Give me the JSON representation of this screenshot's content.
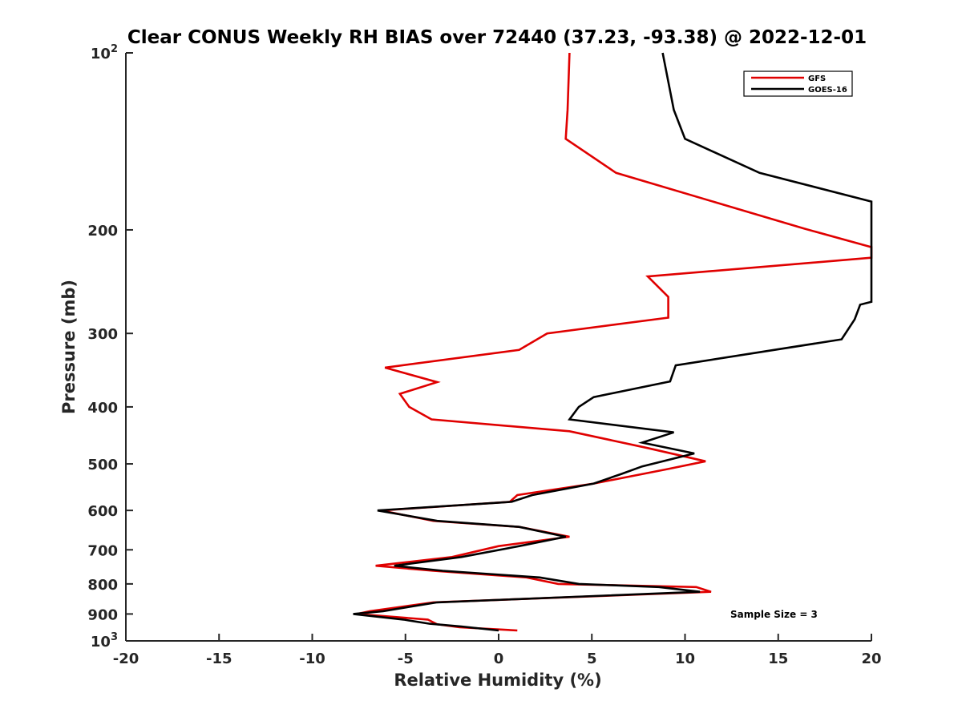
{
  "chart_data": {
    "type": "line",
    "title": "Clear CONUS Weekly RH BIAS over 72440 (37.23, -93.38) @ 2022-12-01",
    "xlabel": "Relative Humidity (%)",
    "ylabel": "Pressure (mb)",
    "xlim": [
      -20,
      20
    ],
    "ylim": [
      100,
      1000
    ],
    "y_scale": "log",
    "y_reversed": true,
    "xticks": [
      "-20",
      "-15",
      "-10",
      "-5",
      "0",
      "5",
      "10",
      "15",
      "20"
    ],
    "xtick_values": [
      -20,
      -15,
      -10,
      -5,
      0,
      5,
      10,
      15,
      20
    ],
    "yticks": [
      {
        "value": 100,
        "base": "10",
        "exp": "2"
      },
      {
        "value": 200,
        "label": "200"
      },
      {
        "value": 300,
        "label": "300"
      },
      {
        "value": 400,
        "label": "400"
      },
      {
        "value": 500,
        "label": "500"
      },
      {
        "value": 600,
        "label": "600"
      },
      {
        "value": 700,
        "label": "700"
      },
      {
        "value": 800,
        "label": "800"
      },
      {
        "value": 900,
        "label": "900"
      },
      {
        "value": 1000,
        "base": "10",
        "exp": "3"
      }
    ],
    "legend_position": "top-right",
    "grid": false,
    "annotation": "Sample Size = 3",
    "series": [
      {
        "name": "GFS",
        "color": "#e00000",
        "points": [
          [
            3.8,
            100
          ],
          [
            3.7,
            125
          ],
          [
            3.6,
            140
          ],
          [
            6.3,
            160
          ],
          [
            16.4,
            199
          ],
          [
            20,
            214
          ],
          [
            20,
            223
          ],
          [
            8.0,
            240
          ],
          [
            9.1,
            260
          ],
          [
            9.1,
            282
          ],
          [
            2.6,
            300
          ],
          [
            1.1,
            320
          ],
          [
            -6.1,
            343
          ],
          [
            -3.3,
            363
          ],
          [
            -5.3,
            380
          ],
          [
            -4.8,
            400
          ],
          [
            -3.6,
            420
          ],
          [
            3.8,
            440
          ],
          [
            8.0,
            470
          ],
          [
            11.1,
            495
          ],
          [
            9.1,
            510
          ],
          [
            5.1,
            540
          ],
          [
            1.0,
            565
          ],
          [
            0.6,
            580
          ],
          [
            -6.3,
            600
          ],
          [
            -3.5,
            625
          ],
          [
            1.1,
            640
          ],
          [
            3.8,
            665
          ],
          [
            0.0,
            690
          ],
          [
            -2.5,
            720
          ],
          [
            -6.6,
            745
          ],
          [
            -3.5,
            760
          ],
          [
            1.5,
            780
          ],
          [
            3.2,
            800
          ],
          [
            10.6,
            810
          ],
          [
            11.4,
            825
          ],
          [
            -3.5,
            860
          ],
          [
            -6.9,
            890
          ],
          [
            -7.6,
            900
          ],
          [
            -3.8,
            920
          ],
          [
            -3.3,
            937
          ],
          [
            -2.1,
            948
          ],
          [
            1.0,
            960
          ]
        ]
      },
      {
        "name": "GOES-16",
        "color": "#000000",
        "points": [
          [
            8.8,
            100
          ],
          [
            9.4,
            125
          ],
          [
            10.0,
            140
          ],
          [
            14.0,
            160
          ],
          [
            20,
            179
          ],
          [
            20,
            265
          ],
          [
            19.4,
            268
          ],
          [
            19.1,
            284
          ],
          [
            18.4,
            307
          ],
          [
            9.5,
            340
          ],
          [
            9.2,
            362
          ],
          [
            5.1,
            385
          ],
          [
            4.3,
            400
          ],
          [
            3.8,
            420
          ],
          [
            9.4,
            442
          ],
          [
            7.7,
            460
          ],
          [
            10.5,
            480
          ],
          [
            7.7,
            505
          ],
          [
            6.6,
            520
          ],
          [
            5.1,
            540
          ],
          [
            1.8,
            565
          ],
          [
            0.7,
            580
          ],
          [
            -6.5,
            600
          ],
          [
            -3.3,
            625
          ],
          [
            1.1,
            640
          ],
          [
            3.6,
            665
          ],
          [
            1.1,
            690
          ],
          [
            -2.0,
            720
          ],
          [
            -5.6,
            745
          ],
          [
            -3.0,
            760
          ],
          [
            2.2,
            780
          ],
          [
            4.3,
            800
          ],
          [
            8.6,
            810
          ],
          [
            10.8,
            825
          ],
          [
            -3.3,
            860
          ],
          [
            -6.2,
            890
          ],
          [
            -7.8,
            900
          ],
          [
            -5.1,
            920
          ],
          [
            -3.7,
            935
          ],
          [
            -2.0,
            945
          ],
          [
            0.0,
            960
          ]
        ]
      }
    ]
  }
}
